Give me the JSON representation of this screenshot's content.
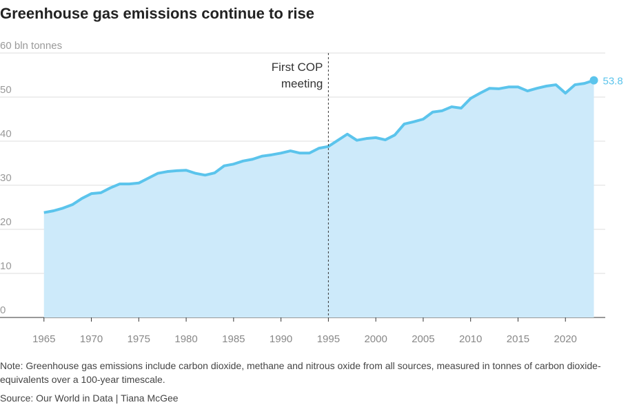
{
  "chart_data": {
    "type": "area",
    "title": "Greenhouse gas emissions continue to rise",
    "x": [
      1965,
      1966,
      1967,
      1968,
      1969,
      1970,
      1971,
      1972,
      1973,
      1974,
      1975,
      1976,
      1977,
      1978,
      1979,
      1980,
      1981,
      1982,
      1983,
      1984,
      1985,
      1986,
      1987,
      1988,
      1989,
      1990,
      1991,
      1992,
      1993,
      1994,
      1995,
      1996,
      1997,
      1998,
      1999,
      2000,
      2001,
      2002,
      2003,
      2004,
      2005,
      2006,
      2007,
      2008,
      2009,
      2010,
      2011,
      2012,
      2013,
      2014,
      2015,
      2016,
      2017,
      2018,
      2019,
      2020,
      2021,
      2022,
      2023
    ],
    "series": [
      {
        "color": "#5bc4ec",
        "fill": "#cdeafa",
        "values": [
          23.8,
          24.2,
          24.8,
          25.6,
          27.0,
          28.1,
          28.3,
          29.4,
          30.3,
          30.3,
          30.5,
          31.6,
          32.7,
          33.1,
          33.3,
          33.4,
          32.7,
          32.3,
          32.8,
          34.4,
          34.8,
          35.5,
          35.9,
          36.6,
          36.9,
          37.3,
          37.8,
          37.3,
          37.3,
          38.4,
          38.8,
          40.2,
          41.6,
          40.2,
          40.6,
          40.8,
          40.3,
          41.4,
          43.9,
          44.4,
          45.0,
          46.6,
          46.9,
          47.8,
          47.5,
          49.7,
          50.9,
          52.0,
          51.9,
          52.3,
          52.3,
          51.4,
          52.0,
          52.5,
          52.8,
          50.9,
          52.8,
          53.1,
          53.8
        ]
      }
    ],
    "xlim": [
      1964,
      2024.2
    ],
    "xticks": [
      1965,
      1970,
      1975,
      1980,
      1985,
      1990,
      1995,
      2000,
      2005,
      2010,
      2015,
      2020
    ],
    "ylim": [
      0,
      60
    ],
    "yticks": [
      0,
      10,
      20,
      30,
      40,
      50,
      {
        "value": 60,
        "label": "60 bln tonnes"
      }
    ],
    "grid": true,
    "annotation": {
      "x": 1995,
      "lines": [
        "First COP",
        "meeting"
      ]
    },
    "note": "Note: Greenhouse gas emissions include carbon dioxide, methane and nitrous oxide from all sources, measured in tonnes of carbon dioxide-equivalents over a 100-year timescale.",
    "source": "Source: Our World in Data | Tiana McGee"
  }
}
